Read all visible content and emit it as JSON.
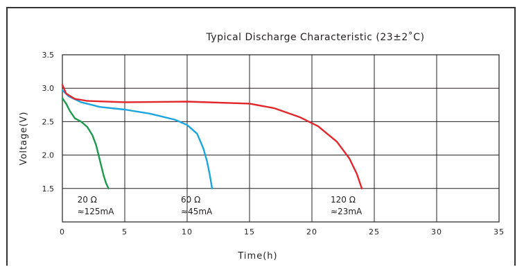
{
  "chart_data": {
    "type": "line",
    "title": "Typical Discharge Characteristic (23±2˚C)",
    "xlabel": "Time(h)",
    "ylabel": "Voltage(V)",
    "xlim": [
      0,
      35
    ],
    "ylim": [
      1.0,
      3.5
    ],
    "xticks": [
      "0",
      "5",
      "10",
      "15",
      "20",
      "25",
      "30",
      "35"
    ],
    "yticks": [
      "1.5",
      "2.0",
      "2.5",
      "3.0",
      "3.5"
    ],
    "grid": true,
    "series": [
      {
        "name_lines": [
          "20 Ω",
          "≈125mA"
        ],
        "color": "#1a9a4a",
        "points": [
          [
            0,
            2.85
          ],
          [
            0.3,
            2.77
          ],
          [
            0.6,
            2.66
          ],
          [
            1.0,
            2.55
          ],
          [
            1.5,
            2.5
          ],
          [
            2.0,
            2.42
          ],
          [
            2.4,
            2.3
          ],
          [
            2.7,
            2.15
          ],
          [
            2.9,
            2.0
          ],
          [
            3.1,
            1.85
          ],
          [
            3.3,
            1.7
          ],
          [
            3.5,
            1.58
          ],
          [
            3.7,
            1.5
          ]
        ]
      },
      {
        "name_lines": [
          "60 Ω",
          "≈45mA"
        ],
        "color": "#1ba5e0",
        "points": [
          [
            0,
            2.97
          ],
          [
            0.5,
            2.88
          ],
          [
            1.5,
            2.79
          ],
          [
            3,
            2.72
          ],
          [
            5,
            2.68
          ],
          [
            7,
            2.62
          ],
          [
            9,
            2.53
          ],
          [
            10,
            2.45
          ],
          [
            10.8,
            2.32
          ],
          [
            11.3,
            2.1
          ],
          [
            11.6,
            1.9
          ],
          [
            11.8,
            1.72
          ],
          [
            12.0,
            1.5
          ]
        ]
      },
      {
        "name_lines": [
          "120 Ω",
          "≈23mA"
        ],
        "color": "#e3262b",
        "points": [
          [
            0,
            3.05
          ],
          [
            0.3,
            2.92
          ],
          [
            1,
            2.84
          ],
          [
            2,
            2.81
          ],
          [
            5,
            2.79
          ],
          [
            10,
            2.8
          ],
          [
            15,
            2.77
          ],
          [
            17,
            2.7
          ],
          [
            19,
            2.57
          ],
          [
            20.5,
            2.43
          ],
          [
            22,
            2.2
          ],
          [
            23,
            1.95
          ],
          [
            23.6,
            1.72
          ],
          [
            24.0,
            1.5
          ]
        ]
      }
    ]
  }
}
